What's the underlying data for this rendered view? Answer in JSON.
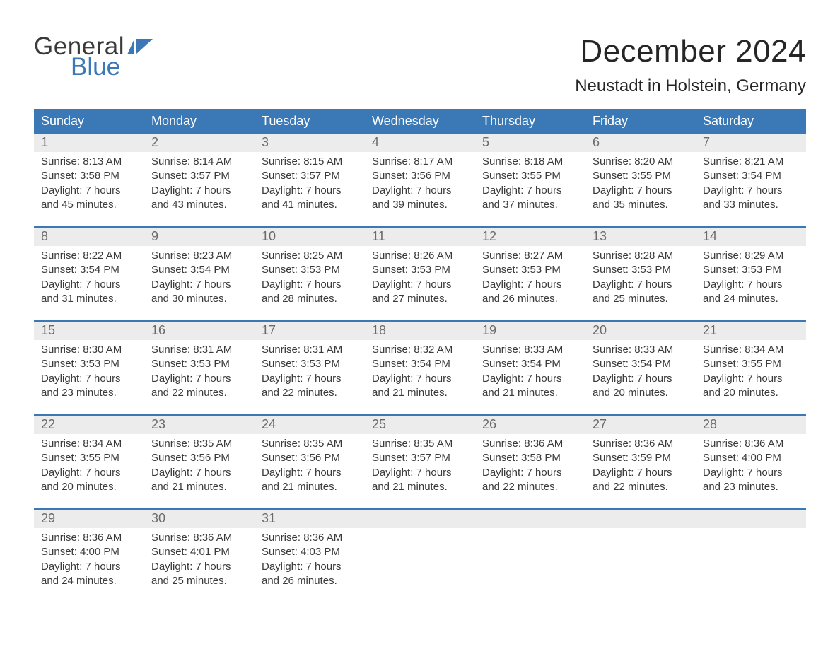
{
  "colors": {
    "header_bg": "#3a78b6",
    "header_text": "#ffffff",
    "daynum_bg": "#ececec",
    "daynum_text": "#6a6a6a",
    "body_text": "#3a3a3a",
    "title_text": "#262626",
    "week_border": "#3a78b6",
    "logo_gray": "#3a3a3a",
    "logo_blue": "#3a78b6",
    "page_bg": "#ffffff"
  },
  "typography": {
    "month_title_fontsize": 44,
    "location_fontsize": 24,
    "dayhead_fontsize": 18,
    "daynum_fontsize": 18,
    "cell_fontsize": 15,
    "logo_fontsize": 35
  },
  "logo": {
    "line1": "General",
    "line2": "Blue"
  },
  "title": "December 2024",
  "location": "Neustadt in Holstein, Germany",
  "day_headers": [
    "Sunday",
    "Monday",
    "Tuesday",
    "Wednesday",
    "Thursday",
    "Friday",
    "Saturday"
  ],
  "weeks": [
    [
      {
        "num": "1",
        "sunrise": "Sunrise: 8:13 AM",
        "sunset": "Sunset: 3:58 PM",
        "d1": "Daylight: 7 hours",
        "d2": "and 45 minutes."
      },
      {
        "num": "2",
        "sunrise": "Sunrise: 8:14 AM",
        "sunset": "Sunset: 3:57 PM",
        "d1": "Daylight: 7 hours",
        "d2": "and 43 minutes."
      },
      {
        "num": "3",
        "sunrise": "Sunrise: 8:15 AM",
        "sunset": "Sunset: 3:57 PM",
        "d1": "Daylight: 7 hours",
        "d2": "and 41 minutes."
      },
      {
        "num": "4",
        "sunrise": "Sunrise: 8:17 AM",
        "sunset": "Sunset: 3:56 PM",
        "d1": "Daylight: 7 hours",
        "d2": "and 39 minutes."
      },
      {
        "num": "5",
        "sunrise": "Sunrise: 8:18 AM",
        "sunset": "Sunset: 3:55 PM",
        "d1": "Daylight: 7 hours",
        "d2": "and 37 minutes."
      },
      {
        "num": "6",
        "sunrise": "Sunrise: 8:20 AM",
        "sunset": "Sunset: 3:55 PM",
        "d1": "Daylight: 7 hours",
        "d2": "and 35 minutes."
      },
      {
        "num": "7",
        "sunrise": "Sunrise: 8:21 AM",
        "sunset": "Sunset: 3:54 PM",
        "d1": "Daylight: 7 hours",
        "d2": "and 33 minutes."
      }
    ],
    [
      {
        "num": "8",
        "sunrise": "Sunrise: 8:22 AM",
        "sunset": "Sunset: 3:54 PM",
        "d1": "Daylight: 7 hours",
        "d2": "and 31 minutes."
      },
      {
        "num": "9",
        "sunrise": "Sunrise: 8:23 AM",
        "sunset": "Sunset: 3:54 PM",
        "d1": "Daylight: 7 hours",
        "d2": "and 30 minutes."
      },
      {
        "num": "10",
        "sunrise": "Sunrise: 8:25 AM",
        "sunset": "Sunset: 3:53 PM",
        "d1": "Daylight: 7 hours",
        "d2": "and 28 minutes."
      },
      {
        "num": "11",
        "sunrise": "Sunrise: 8:26 AM",
        "sunset": "Sunset: 3:53 PM",
        "d1": "Daylight: 7 hours",
        "d2": "and 27 minutes."
      },
      {
        "num": "12",
        "sunrise": "Sunrise: 8:27 AM",
        "sunset": "Sunset: 3:53 PM",
        "d1": "Daylight: 7 hours",
        "d2": "and 26 minutes."
      },
      {
        "num": "13",
        "sunrise": "Sunrise: 8:28 AM",
        "sunset": "Sunset: 3:53 PM",
        "d1": "Daylight: 7 hours",
        "d2": "and 25 minutes."
      },
      {
        "num": "14",
        "sunrise": "Sunrise: 8:29 AM",
        "sunset": "Sunset: 3:53 PM",
        "d1": "Daylight: 7 hours",
        "d2": "and 24 minutes."
      }
    ],
    [
      {
        "num": "15",
        "sunrise": "Sunrise: 8:30 AM",
        "sunset": "Sunset: 3:53 PM",
        "d1": "Daylight: 7 hours",
        "d2": "and 23 minutes."
      },
      {
        "num": "16",
        "sunrise": "Sunrise: 8:31 AM",
        "sunset": "Sunset: 3:53 PM",
        "d1": "Daylight: 7 hours",
        "d2": "and 22 minutes."
      },
      {
        "num": "17",
        "sunrise": "Sunrise: 8:31 AM",
        "sunset": "Sunset: 3:53 PM",
        "d1": "Daylight: 7 hours",
        "d2": "and 22 minutes."
      },
      {
        "num": "18",
        "sunrise": "Sunrise: 8:32 AM",
        "sunset": "Sunset: 3:54 PM",
        "d1": "Daylight: 7 hours",
        "d2": "and 21 minutes."
      },
      {
        "num": "19",
        "sunrise": "Sunrise: 8:33 AM",
        "sunset": "Sunset: 3:54 PM",
        "d1": "Daylight: 7 hours",
        "d2": "and 21 minutes."
      },
      {
        "num": "20",
        "sunrise": "Sunrise: 8:33 AM",
        "sunset": "Sunset: 3:54 PM",
        "d1": "Daylight: 7 hours",
        "d2": "and 20 minutes."
      },
      {
        "num": "21",
        "sunrise": "Sunrise: 8:34 AM",
        "sunset": "Sunset: 3:55 PM",
        "d1": "Daylight: 7 hours",
        "d2": "and 20 minutes."
      }
    ],
    [
      {
        "num": "22",
        "sunrise": "Sunrise: 8:34 AM",
        "sunset": "Sunset: 3:55 PM",
        "d1": "Daylight: 7 hours",
        "d2": "and 20 minutes."
      },
      {
        "num": "23",
        "sunrise": "Sunrise: 8:35 AM",
        "sunset": "Sunset: 3:56 PM",
        "d1": "Daylight: 7 hours",
        "d2": "and 21 minutes."
      },
      {
        "num": "24",
        "sunrise": "Sunrise: 8:35 AM",
        "sunset": "Sunset: 3:56 PM",
        "d1": "Daylight: 7 hours",
        "d2": "and 21 minutes."
      },
      {
        "num": "25",
        "sunrise": "Sunrise: 8:35 AM",
        "sunset": "Sunset: 3:57 PM",
        "d1": "Daylight: 7 hours",
        "d2": "and 21 minutes."
      },
      {
        "num": "26",
        "sunrise": "Sunrise: 8:36 AM",
        "sunset": "Sunset: 3:58 PM",
        "d1": "Daylight: 7 hours",
        "d2": "and 22 minutes."
      },
      {
        "num": "27",
        "sunrise": "Sunrise: 8:36 AM",
        "sunset": "Sunset: 3:59 PM",
        "d1": "Daylight: 7 hours",
        "d2": "and 22 minutes."
      },
      {
        "num": "28",
        "sunrise": "Sunrise: 8:36 AM",
        "sunset": "Sunset: 4:00 PM",
        "d1": "Daylight: 7 hours",
        "d2": "and 23 minutes."
      }
    ],
    [
      {
        "num": "29",
        "sunrise": "Sunrise: 8:36 AM",
        "sunset": "Sunset: 4:00 PM",
        "d1": "Daylight: 7 hours",
        "d2": "and 24 minutes."
      },
      {
        "num": "30",
        "sunrise": "Sunrise: 8:36 AM",
        "sunset": "Sunset: 4:01 PM",
        "d1": "Daylight: 7 hours",
        "d2": "and 25 minutes."
      },
      {
        "num": "31",
        "sunrise": "Sunrise: 8:36 AM",
        "sunset": "Sunset: 4:03 PM",
        "d1": "Daylight: 7 hours",
        "d2": "and 26 minutes."
      },
      {
        "num": "",
        "sunrise": "",
        "sunset": "",
        "d1": "",
        "d2": ""
      },
      {
        "num": "",
        "sunrise": "",
        "sunset": "",
        "d1": "",
        "d2": ""
      },
      {
        "num": "",
        "sunrise": "",
        "sunset": "",
        "d1": "",
        "d2": ""
      },
      {
        "num": "",
        "sunrise": "",
        "sunset": "",
        "d1": "",
        "d2": ""
      }
    ]
  ]
}
